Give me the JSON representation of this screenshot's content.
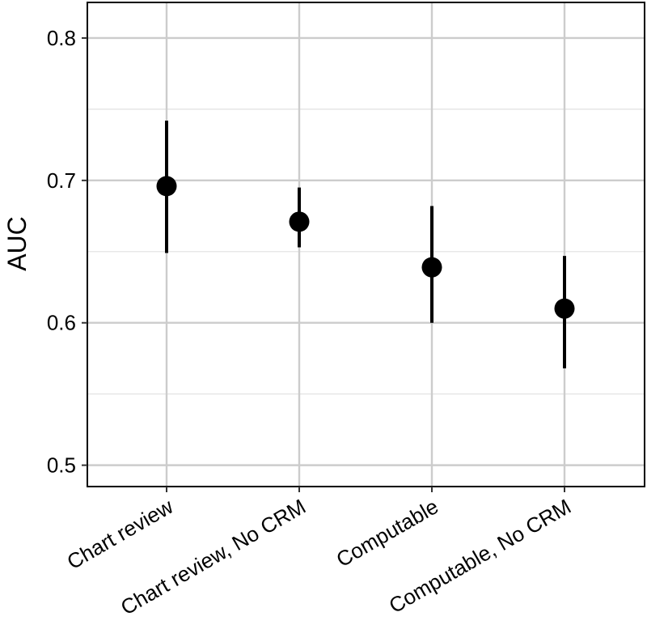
{
  "chart_data": {
    "type": "scatter",
    "title": "",
    "xlabel": "",
    "ylabel": "AUC",
    "ylim": [
      0.485,
      0.825
    ],
    "y_ticks": [
      "0.5",
      "0.6",
      "0.7",
      "0.8"
    ],
    "y_tick_values": [
      0.5,
      0.6,
      0.7,
      0.8
    ],
    "y_minor_grid": [
      0.55,
      0.65,
      0.75
    ],
    "categories": [
      "Chart review",
      "Chart review, No CRM",
      "Computable",
      "Computable, No CRM"
    ],
    "values": [
      0.696,
      0.671,
      0.639,
      0.61
    ],
    "lower": [
      0.649,
      0.653,
      0.6,
      0.568
    ],
    "upper": [
      0.742,
      0.695,
      0.682,
      0.647
    ],
    "grid": true,
    "legend": "none",
    "colors": {
      "point": "#000000",
      "errorbar": "#000000",
      "grid": "#cccccc",
      "panel_border": "#000000",
      "background": "#ffffff"
    }
  }
}
